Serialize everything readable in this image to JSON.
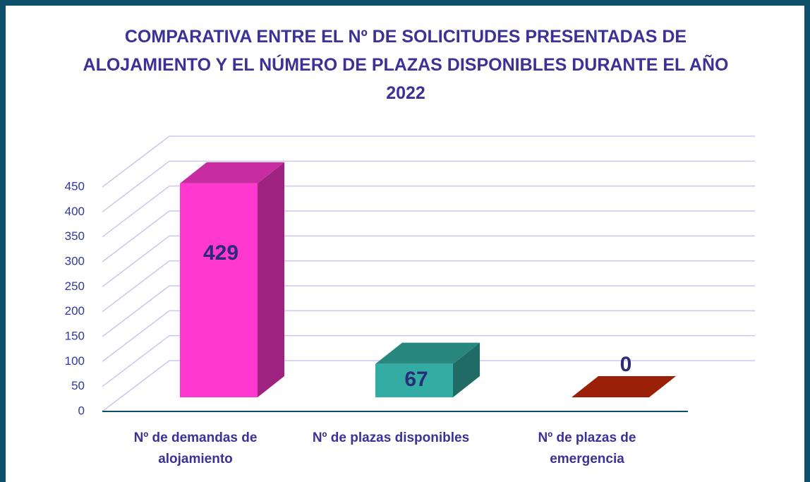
{
  "chart_data": {
    "type": "bar3d",
    "title": "COMPARATIVA ENTRE EL Nº DE SOLICITUDES PRESENTADAS DE ALOJAMIENTO Y EL NÚMERO DE PLAZAS DISPONIBLES DURANTE EL AÑO 2022",
    "categories": [
      "Nº de demandas de alojamiento",
      "Nº de plazas disponibles",
      "Nº de plazas de emergencia"
    ],
    "values": [
      429,
      67,
      0
    ],
    "colors": [
      "#ff38d0",
      "#33ada3",
      "#c62a0a"
    ],
    "ylim": [
      0,
      450
    ],
    "yticks": [
      0,
      50,
      100,
      150,
      200,
      250,
      300,
      350,
      400,
      450
    ],
    "grid": true
  }
}
